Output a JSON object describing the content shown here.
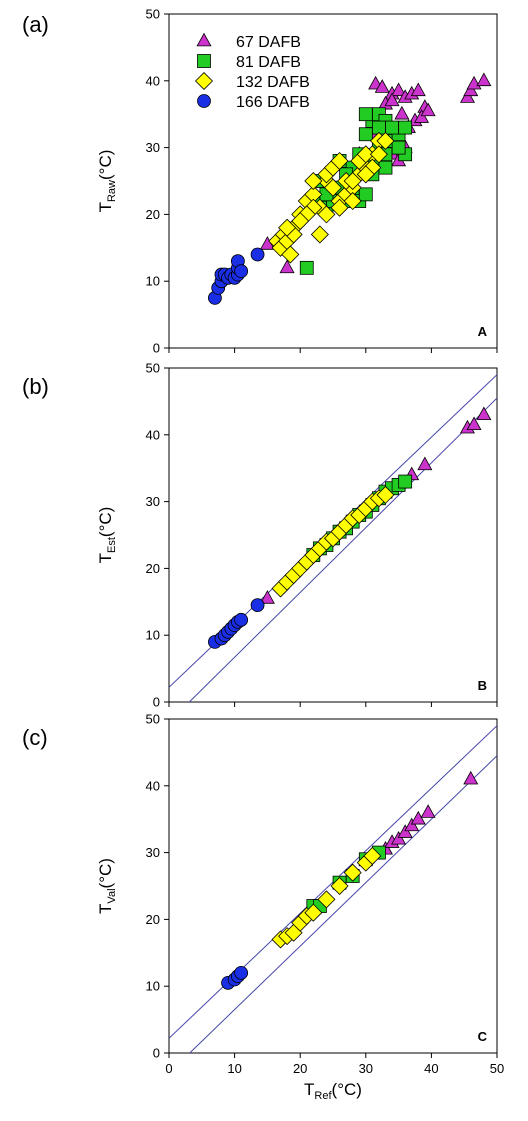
{
  "colors": {
    "67 DAFB": "#cc33cc",
    "81 DAFB": "#22cc22",
    "132 DAFB": "#ffff00",
    "166 DAFB": "#1a2ee6",
    "line": "#4444aa"
  },
  "x_axis": {
    "label": "T",
    "sub": "Ref",
    "unit": "(°C)"
  },
  "chart_data": [
    {
      "type": "scatter",
      "panel_label": "(a)",
      "corner_label": "A",
      "ylabel": {
        "main": "T",
        "sub": "Raw",
        "unit": "(°C)"
      },
      "xlim": [
        0,
        50
      ],
      "ylim": [
        0,
        50
      ],
      "xticks": [
        0,
        10,
        20,
        30,
        40,
        50
      ],
      "yticks": [
        0,
        10,
        20,
        30,
        40,
        50
      ],
      "legend": {
        "placement": "top-left",
        "entries": [
          "67 DAFB",
          "81 DAFB",
          "132 DAFB",
          "166 DAFB"
        ]
      },
      "series": [
        {
          "name": "67 DAFB",
          "marker": "triangle",
          "points": [
            [
              15,
              15.5
            ],
            [
              18,
              12
            ],
            [
              31.5,
              39.5
            ],
            [
              32.5,
              39
            ],
            [
              34,
              38
            ],
            [
              35,
              38.5
            ],
            [
              36,
              37.5
            ],
            [
              37,
              38
            ],
            [
              38,
              38.5
            ],
            [
              39,
              36
            ],
            [
              33,
              36.5
            ],
            [
              34,
              37
            ],
            [
              35.5,
              35
            ],
            [
              36.5,
              33
            ],
            [
              37.5,
              34
            ],
            [
              38.5,
              34.5
            ],
            [
              39.5,
              35.5
            ],
            [
              45.5,
              37.5
            ],
            [
              46,
              38.5
            ],
            [
              46.5,
              39.5
            ],
            [
              48,
              40
            ],
            [
              33,
              31
            ],
            [
              34,
              29
            ],
            [
              35,
              28
            ],
            [
              36,
              30
            ],
            [
              31,
              32
            ],
            [
              32,
              27
            ],
            [
              29,
              29
            ]
          ]
        },
        {
          "name": "81 DAFB",
          "marker": "square",
          "points": [
            [
              21,
              12
            ],
            [
              22,
              22
            ],
            [
              23,
              25
            ],
            [
              24,
              21
            ],
            [
              25,
              23
            ],
            [
              26,
              24
            ],
            [
              27,
              22
            ],
            [
              28,
              23
            ],
            [
              29,
              22
            ],
            [
              30,
              23
            ],
            [
              31,
              28
            ],
            [
              32,
              30
            ],
            [
              33,
              29
            ],
            [
              34,
              31
            ],
            [
              35,
              32
            ],
            [
              36,
              29
            ],
            [
              30,
              32
            ],
            [
              31,
              34
            ],
            [
              32,
              35
            ],
            [
              33,
              34
            ],
            [
              31,
              26
            ],
            [
              33,
              27
            ],
            [
              35,
              30
            ],
            [
              28,
              27
            ],
            [
              29,
              29
            ],
            [
              30,
              35
            ],
            [
              32,
              33
            ],
            [
              34,
              33
            ],
            [
              36,
              33
            ],
            [
              27,
              26
            ],
            [
              26,
              28
            ],
            [
              25,
              22
            ],
            [
              24,
              23
            ]
          ]
        },
        {
          "name": "132 DAFB",
          "marker": "diamond",
          "points": [
            [
              16.5,
              16
            ],
            [
              17,
              15
            ],
            [
              17.5,
              17
            ],
            [
              18,
              16
            ],
            [
              18.5,
              14
            ],
            [
              19,
              18
            ],
            [
              20,
              20
            ],
            [
              21,
              22
            ],
            [
              22,
              23
            ],
            [
              23,
              21
            ],
            [
              24,
              25
            ],
            [
              25,
              24
            ],
            [
              26,
              22
            ],
            [
              27,
              23
            ],
            [
              28,
              24
            ],
            [
              29,
              26
            ],
            [
              30,
              27
            ],
            [
              31,
              29
            ],
            [
              32,
              31
            ],
            [
              23,
              17
            ],
            [
              24,
              26
            ],
            [
              25,
              27
            ],
            [
              26,
              28
            ],
            [
              27,
              25
            ],
            [
              28,
              25
            ],
            [
              29,
              28
            ],
            [
              30,
              29
            ],
            [
              31,
              27
            ],
            [
              32,
              29
            ],
            [
              33,
              31
            ],
            [
              22,
              21
            ],
            [
              21,
              20
            ],
            [
              20,
              19
            ],
            [
              19,
              17
            ],
            [
              18,
              18
            ],
            [
              24,
              20
            ],
            [
              26,
              21
            ],
            [
              28,
              22
            ],
            [
              30,
              26
            ],
            [
              22,
              25
            ]
          ]
        },
        {
          "name": "166 DAFB",
          "marker": "circle",
          "points": [
            [
              7,
              7.5
            ],
            [
              7.5,
              9
            ],
            [
              8,
              10
            ],
            [
              8,
              11
            ],
            [
              8.5,
              11
            ],
            [
              9,
              10.5
            ],
            [
              9.5,
              11
            ],
            [
              10,
              10.5
            ],
            [
              10.5,
              11
            ],
            [
              10.5,
              12
            ],
            [
              10.5,
              13
            ],
            [
              11,
              11.5
            ],
            [
              13.5,
              14
            ]
          ]
        }
      ]
    },
    {
      "type": "scatter",
      "panel_label": "(b)",
      "corner_label": "B",
      "ylabel": {
        "main": "T",
        "sub": "Est",
        "unit": "(°C)"
      },
      "xlim": [
        0,
        50
      ],
      "ylim": [
        0,
        50
      ],
      "xticks": [
        0,
        10,
        20,
        30,
        40,
        50
      ],
      "yticks": [
        0,
        10,
        20,
        30,
        40,
        50
      ],
      "lines": [
        {
          "x": [
            0,
            50
          ],
          "y": [
            2.2,
            49
          ]
        },
        {
          "x": [
            0,
            50
          ],
          "y": [
            -3,
            45.5
          ]
        }
      ],
      "series": [
        {
          "name": "67 DAFB",
          "marker": "triangle",
          "points": [
            [
              15,
              15.5
            ],
            [
              37,
              34
            ],
            [
              39,
              35.5
            ],
            [
              45.5,
              41
            ],
            [
              46.5,
              41.5
            ],
            [
              48,
              43
            ]
          ]
        },
        {
          "name": "81 DAFB",
          "marker": "square",
          "points": [
            [
              22,
              22
            ],
            [
              23,
              23
            ],
            [
              24,
              23.5
            ],
            [
              25,
              24.5
            ],
            [
              26,
              25.5
            ],
            [
              27,
              26
            ],
            [
              28,
              27
            ],
            [
              29,
              28
            ],
            [
              30,
              28.5
            ],
            [
              31,
              29.5
            ],
            [
              32,
              30.5
            ],
            [
              33,
              31.5
            ],
            [
              34,
              32
            ],
            [
              35,
              32.5
            ],
            [
              36,
              33
            ]
          ]
        },
        {
          "name": "132 DAFB",
          "marker": "diamond",
          "points": [
            [
              17,
              17
            ],
            [
              18,
              18
            ],
            [
              19,
              19
            ],
            [
              20,
              20
            ],
            [
              21,
              21
            ],
            [
              22,
              22
            ],
            [
              23,
              23
            ],
            [
              24,
              24
            ],
            [
              25,
              24.5
            ],
            [
              26,
              25.5
            ],
            [
              27,
              26.5
            ],
            [
              28,
              27.5
            ],
            [
              29,
              28
            ],
            [
              30,
              29
            ],
            [
              31,
              30
            ],
            [
              32,
              30.5
            ],
            [
              33,
              31
            ]
          ]
        },
        {
          "name": "166 DAFB",
          "marker": "circle",
          "points": [
            [
              7,
              9
            ],
            [
              8,
              9.5
            ],
            [
              8.5,
              10
            ],
            [
              9,
              10.5
            ],
            [
              9.5,
              11
            ],
            [
              10,
              11.5
            ],
            [
              10.5,
              12
            ],
            [
              11,
              12.3
            ],
            [
              13.5,
              14.5
            ]
          ]
        }
      ]
    },
    {
      "type": "scatter",
      "panel_label": "(c)",
      "corner_label": "C",
      "ylabel": {
        "main": "T",
        "sub": "Val",
        "unit": "(°C)"
      },
      "xlim": [
        0,
        50
      ],
      "ylim": [
        0,
        50
      ],
      "xticks": [
        0,
        10,
        20,
        30,
        40,
        50
      ],
      "yticks": [
        0,
        10,
        20,
        30,
        40,
        50
      ],
      "lines": [
        {
          "x": [
            0,
            50
          ],
          "y": [
            2.2,
            49
          ]
        },
        {
          "x": [
            0,
            50
          ],
          "y": [
            -3,
            44.5
          ]
        }
      ],
      "series": [
        {
          "name": "67 DAFB",
          "marker": "triangle",
          "points": [
            [
              33,
              30.5
            ],
            [
              34,
              31.5
            ],
            [
              35,
              32
            ],
            [
              36,
              33
            ],
            [
              37,
              34
            ],
            [
              38,
              35
            ],
            [
              39.5,
              36
            ],
            [
              46,
              41
            ]
          ]
        },
        {
          "name": "81 DAFB",
          "marker": "square",
          "points": [
            [
              22,
              22
            ],
            [
              23,
              22
            ],
            [
              26,
              25.5
            ],
            [
              28,
              26.5
            ],
            [
              30,
              29
            ],
            [
              32,
              30
            ]
          ]
        },
        {
          "name": "132 DAFB",
          "marker": "diamond",
          "points": [
            [
              17,
              17
            ],
            [
              18,
              17.5
            ],
            [
              19,
              18
            ],
            [
              20,
              19.5
            ],
            [
              21,
              20.5
            ],
            [
              22,
              21
            ],
            [
              24,
              23
            ],
            [
              26,
              25
            ],
            [
              28,
              27
            ],
            [
              30,
              28.5
            ],
            [
              31,
              29.5
            ]
          ]
        },
        {
          "name": "166 DAFB",
          "marker": "circle",
          "points": [
            [
              9,
              10.5
            ],
            [
              10,
              11
            ],
            [
              10.5,
              11.5
            ],
            [
              11,
              12
            ]
          ]
        }
      ]
    }
  ]
}
